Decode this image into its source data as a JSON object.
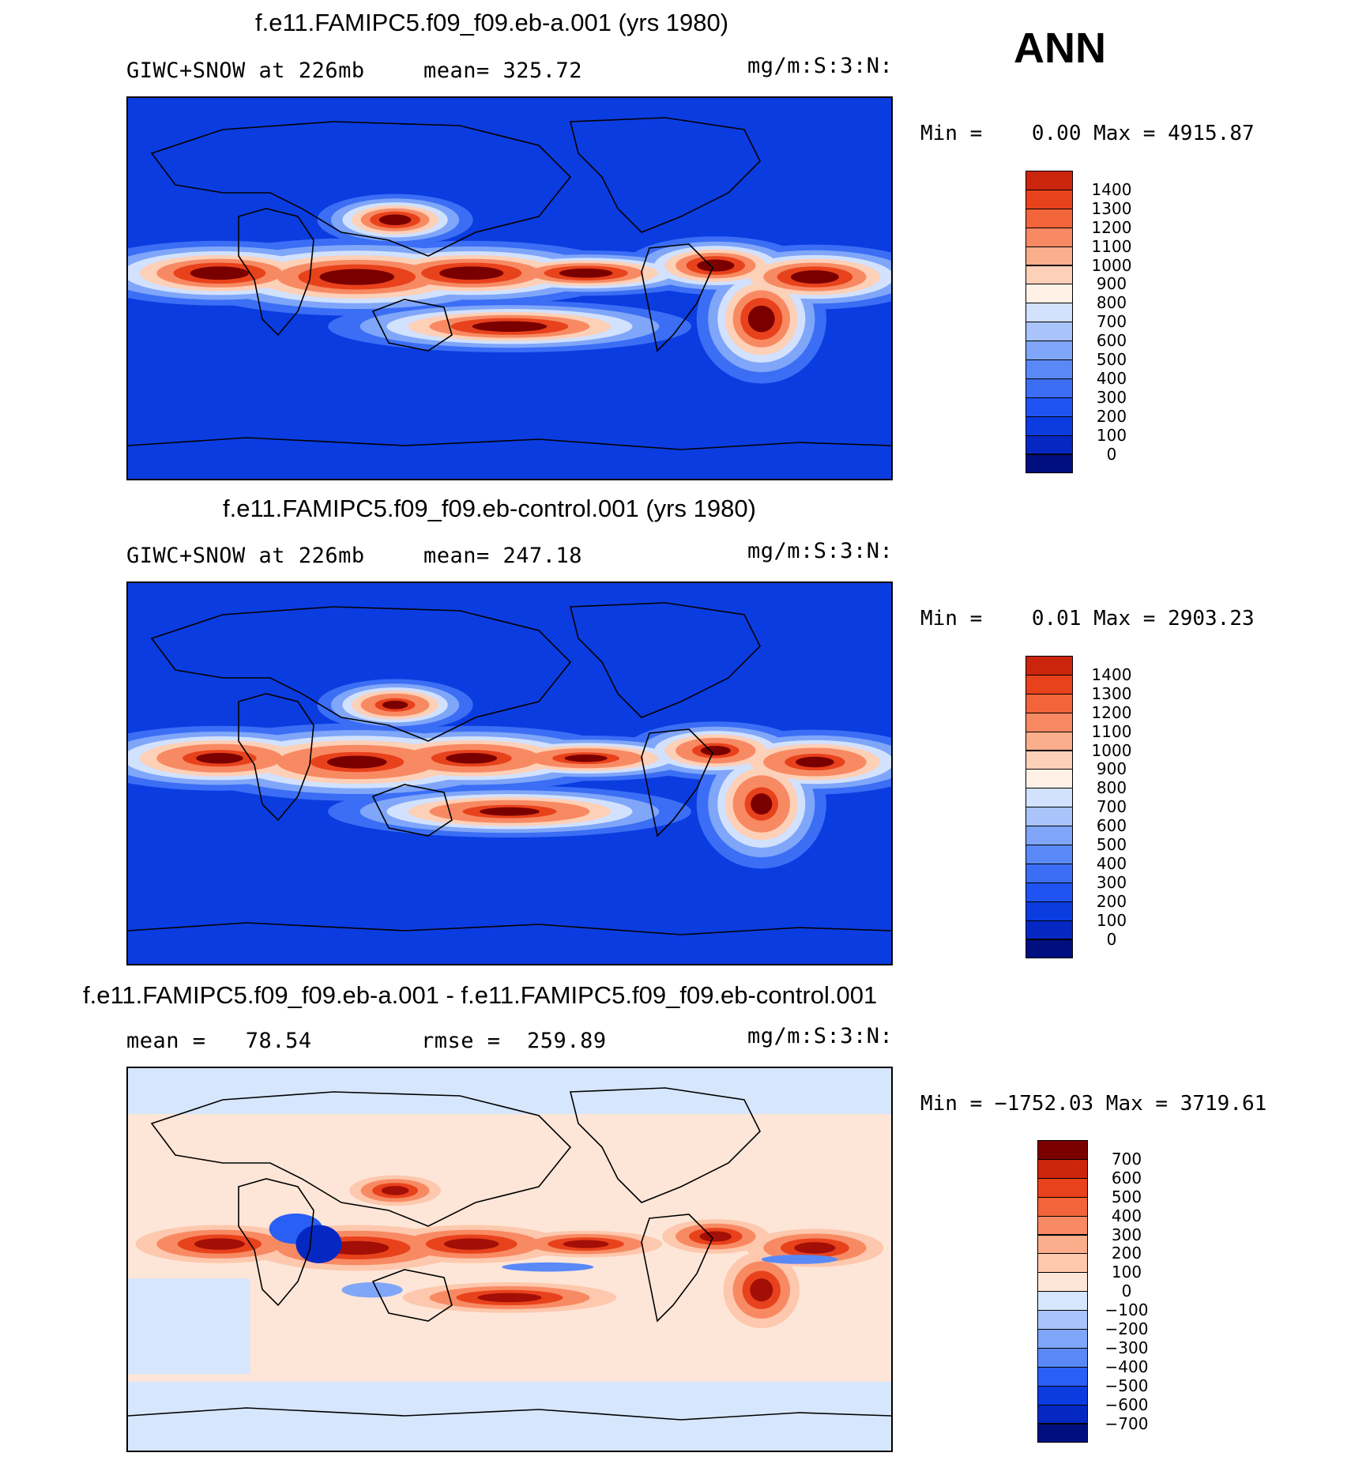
{
  "season": "ANN",
  "colors": {
    "abs_scale": [
      "#000f7f",
      "#0528c2",
      "#0b3ce0",
      "#1f54f2",
      "#3b6ef5",
      "#5a89f7",
      "#7fa6f9",
      "#a9c3fb",
      "#d2e1fd",
      "#fff1e6",
      "#fdd0b8",
      "#fbae8c",
      "#f88a63",
      "#f26439",
      "#e8421c",
      "#cc250e",
      "#a30f06",
      "#7a0000"
    ],
    "diff_scale": [
      "#000f7f",
      "#0528c2",
      "#0b3ce0",
      "#2a5ff5",
      "#5a89f7",
      "#7fa6f9",
      "#a9c3fb",
      "#d6e6fd",
      "#fde6d8",
      "#fdc8ad",
      "#fbae8c",
      "#f88a63",
      "#f26439",
      "#e8421c",
      "#cc250e",
      "#7a0000"
    ]
  },
  "panels": [
    {
      "id": "case",
      "title": "f.e11.FAMIPC5.f09_f09.eb-a.001 (yrs 1980)",
      "left_text": "GIWC+SNOW at 226mb",
      "mid_text": "mean= 325.72",
      "units": "mg/m:S:3:N:",
      "minmax": "Min =    0.00 Max = 4915.87",
      "colorbar_labels": [
        "1400",
        "1300",
        "1200",
        "1100",
        "1000",
        "900",
        "800",
        "700",
        "600",
        "500",
        "400",
        "300",
        "200",
        "100",
        "0"
      ],
      "map_type": "absolute",
      "intensity": 1.0
    },
    {
      "id": "control",
      "title": "f.e11.FAMIPC5.f09_f09.eb-control.001 (yrs 1980)",
      "left_text": "GIWC+SNOW at 226mb",
      "mid_text": "mean= 247.18",
      "units": "mg/m:S:3:N:",
      "minmax": "Min =    0.01 Max = 2903.23",
      "colorbar_labels": [
        "1400",
        "1300",
        "1200",
        "1100",
        "1000",
        "900",
        "800",
        "700",
        "600",
        "500",
        "400",
        "300",
        "200",
        "100",
        "0"
      ],
      "map_type": "absolute",
      "intensity": 0.8
    },
    {
      "id": "diff",
      "title": "f.e11.FAMIPC5.f09_f09.eb-a.001 - f.e11.FAMIPC5.f09_f09.eb-control.001",
      "left_text": "mean =   78.54",
      "mid_text": "rmse =  259.89",
      "units": "mg/m:S:3:N:",
      "minmax": "Min = −1752.03 Max = 3719.61",
      "colorbar_labels": [
        "700",
        "600",
        "500",
        "400",
        "300",
        "200",
        "100",
        "0",
        "−100",
        "−200",
        "−300",
        "−400",
        "−500",
        "−600",
        "−700"
      ],
      "map_type": "difference",
      "intensity": 1.0
    }
  ]
}
